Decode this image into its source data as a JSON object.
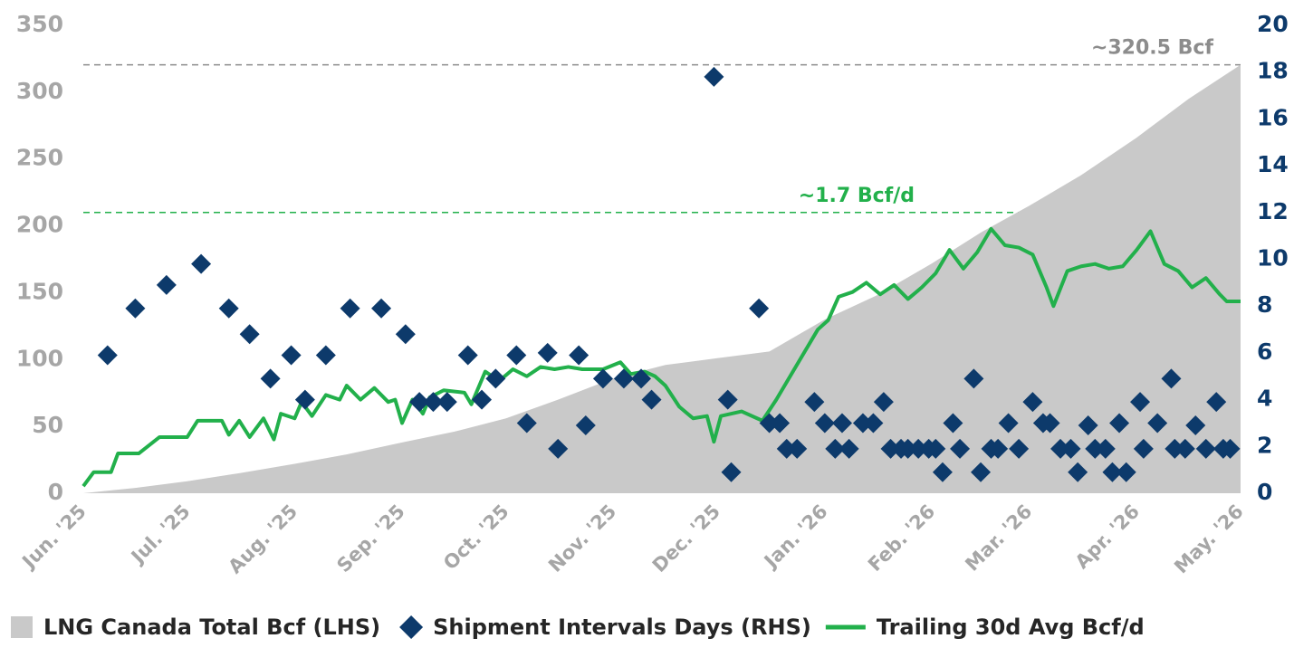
{
  "chart_data": {
    "type": "combo",
    "xlim": [
      0,
      334
    ],
    "xticks": [
      {
        "value": 0,
        "label": "Jun. '25"
      },
      {
        "value": 30,
        "label": "Jul. '25"
      },
      {
        "value": 61,
        "label": "Aug. '25"
      },
      {
        "value": 92,
        "label": "Sep. '25"
      },
      {
        "value": 122,
        "label": "Oct. '25"
      },
      {
        "value": 153,
        "label": "Nov. '25"
      },
      {
        "value": 183,
        "label": "Dec. '25"
      },
      {
        "value": 214,
        "label": "Jan. '26"
      },
      {
        "value": 245,
        "label": "Feb. '26"
      },
      {
        "value": 273,
        "label": "Mar. '26"
      },
      {
        "value": 304,
        "label": "Apr. '26"
      },
      {
        "value": 334,
        "label": "May. '26"
      }
    ],
    "ylim": [
      0,
      350
    ],
    "yticks": [
      0,
      50,
      100,
      150,
      200,
      250,
      300,
      350
    ],
    "y2lim": [
      0,
      20
    ],
    "y2ticks": [
      0,
      2,
      4,
      6,
      8,
      10,
      12,
      14,
      16,
      18,
      20
    ],
    "reference_lines": [
      {
        "label": "~320.5 Bcf",
        "y": 320.5,
        "axis": "y",
        "color": "#8c8c8c"
      },
      {
        "label": "~1.7 Bcf/d",
        "y": 12,
        "axis": "y2",
        "color": "#22b04b"
      }
    ],
    "series": [
      {
        "name": "LNG Canada Total Bcf (LHS)",
        "type": "area",
        "color": "#c9c9c9",
        "axis": "y",
        "x": [
          0,
          15,
          30,
          45,
          61,
          76,
          92,
          107,
          122,
          137,
          153,
          168,
          183,
          198,
          214,
          229,
          245,
          259,
          273,
          288,
          304,
          319,
          334
        ],
        "values": [
          0,
          4,
          9,
          15,
          22,
          29,
          38,
          46,
          56,
          70,
          86,
          96,
          101,
          106,
          130,
          148,
          172,
          195,
          215,
          238,
          266,
          295,
          320.5
        ]
      },
      {
        "name": "Shipment Intervals Days (RHS)",
        "type": "scatter",
        "color": "#0d3a6b",
        "axis": "y2",
        "x": [
          7,
          15,
          24,
          34,
          42,
          48,
          54,
          60,
          64,
          70,
          77,
          86,
          93,
          97,
          101,
          105,
          111,
          115,
          119,
          125,
          128,
          134,
          137,
          143,
          145,
          150,
          156,
          161,
          164,
          182,
          186,
          187,
          195,
          198,
          201,
          203,
          206,
          211,
          214,
          217,
          219,
          221,
          225,
          228,
          231,
          233,
          236,
          238,
          241,
          244,
          246,
          248,
          251,
          253,
          257,
          259,
          262,
          264,
          267,
          270,
          274,
          277,
          279,
          282,
          285,
          287,
          290,
          292,
          295,
          297,
          299,
          301,
          305,
          306,
          310,
          314,
          315,
          318,
          321,
          324,
          327,
          329,
          331
        ],
        "values": [
          5.9,
          7.9,
          8.9,
          9.8,
          7.9,
          6.8,
          4.9,
          5.9,
          4.0,
          5.9,
          7.9,
          7.9,
          6.8,
          3.9,
          3.9,
          3.9,
          5.9,
          4.0,
          4.9,
          5.9,
          3.0,
          6.0,
          1.9,
          5.9,
          2.9,
          4.9,
          4.9,
          4.9,
          4.0,
          17.8,
          4.0,
          0.9,
          7.9,
          3.0,
          3.0,
          1.9,
          1.9,
          3.9,
          3.0,
          1.9,
          3.0,
          1.9,
          3.0,
          3.0,
          3.9,
          1.9,
          1.9,
          1.9,
          1.9,
          1.9,
          1.9,
          0.9,
          3.0,
          1.9,
          4.9,
          0.9,
          1.9,
          1.9,
          3.0,
          1.9,
          3.9,
          3.0,
          3.0,
          1.9,
          1.9,
          0.9,
          2.9,
          1.9,
          1.9,
          0.9,
          3.0,
          0.9,
          3.9,
          1.9,
          3.0,
          4.9,
          1.9,
          1.9,
          2.9,
          1.9,
          3.9,
          1.9,
          1.9
        ]
      },
      {
        "name": "Trailing 30d Avg Bcf/d",
        "type": "line",
        "color": "#22b04b",
        "axis": "y2",
        "x": [
          0,
          3,
          8,
          10,
          16,
          22,
          30,
          33,
          40,
          42,
          45,
          48,
          52,
          55,
          57,
          61,
          63,
          66,
          70,
          74,
          76,
          80,
          84,
          88,
          90,
          92,
          95,
          98,
          100,
          104,
          110,
          112,
          116,
          120,
          124,
          128,
          132,
          136,
          140,
          144,
          150,
          155,
          158,
          162,
          165,
          168,
          172,
          176,
          180,
          182,
          184,
          190,
          196,
          200,
          204,
          208,
          212,
          215,
          218,
          222,
          226,
          230,
          234,
          238,
          242,
          246,
          250,
          254,
          258,
          262,
          266,
          270,
          274,
          278,
          280,
          284,
          288,
          292,
          296,
          300,
          304,
          308,
          312,
          316,
          320,
          324,
          328,
          330,
          334
        ],
        "values": [
          0.3,
          0.9,
          0.9,
          1.7,
          1.7,
          2.4,
          2.4,
          3.1,
          3.1,
          2.5,
          3.1,
          2.4,
          3.2,
          2.3,
          3.4,
          3.2,
          3.9,
          3.3,
          4.2,
          4.0,
          4.6,
          4.0,
          4.5,
          3.9,
          4.0,
          3.0,
          4.0,
          3.4,
          4.1,
          4.4,
          4.3,
          3.8,
          5.2,
          4.8,
          5.3,
          5.0,
          5.4,
          5.3,
          5.4,
          5.3,
          5.3,
          5.6,
          5.1,
          5.2,
          5.0,
          4.6,
          3.7,
          3.2,
          3.3,
          2.2,
          3.3,
          3.5,
          3.1,
          4.0,
          5.0,
          6.0,
          7.0,
          7.4,
          8.4,
          8.6,
          9.0,
          8.5,
          8.9,
          8.3,
          8.8,
          9.4,
          10.4,
          9.6,
          10.3,
          11.3,
          10.6,
          10.5,
          10.2,
          8.8,
          8.0,
          9.5,
          9.7,
          9.8,
          9.6,
          9.7,
          10.4,
          11.2,
          9.8,
          9.5,
          8.8,
          9.2,
          8.5,
          8.2,
          8.2
        ]
      }
    ]
  }
}
